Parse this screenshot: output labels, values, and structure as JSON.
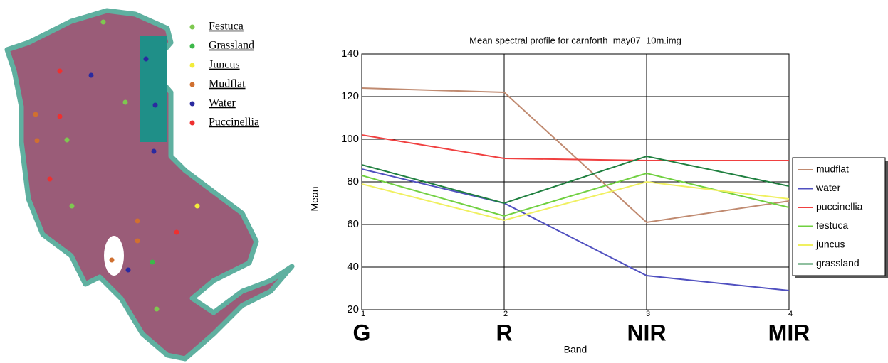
{
  "map": {
    "legend": [
      {
        "label": "Festuca",
        "color": "#7ec850"
      },
      {
        "label": "Grassland",
        "color": "#3cb84a"
      },
      {
        "label": "Juncus",
        "color": "#f2ec3a"
      },
      {
        "label": "Mudflat",
        "color": "#d07030"
      },
      {
        "label": "Water",
        "color": "#2a2aa0"
      },
      {
        "label": "Puccinellia",
        "color": "#ee3030"
      }
    ]
  },
  "chart_data": {
    "type": "line",
    "title": "Mean spectral profile for carnforth_may07_10m.img",
    "x_label": "Band",
    "y_label": "Mean",
    "x": [
      1,
      2,
      3,
      4
    ],
    "band_labels": [
      "G",
      "R",
      "NIR",
      "MIR"
    ],
    "xlim": [
      1,
      4
    ],
    "xticks": [
      1,
      2,
      3,
      4
    ],
    "ylim": [
      20,
      140
    ],
    "yticks": [
      20,
      40,
      60,
      80,
      100,
      120,
      140
    ],
    "grid": true,
    "legend": "right",
    "series": [
      {
        "name": "mudflat",
        "color": "#c08a70",
        "values": [
          124,
          122,
          61,
          71
        ]
      },
      {
        "name": "water",
        "color": "#5050c0",
        "values": [
          86,
          70,
          36,
          29
        ]
      },
      {
        "name": "puccinellia",
        "color": "#f04040",
        "values": [
          102,
          91,
          90,
          90
        ]
      },
      {
        "name": "festuca",
        "color": "#70d040",
        "values": [
          83,
          64,
          84,
          68
        ]
      },
      {
        "name": "juncus",
        "color": "#f0f060",
        "values": [
          79,
          62,
          80,
          72
        ]
      },
      {
        "name": "grassland",
        "color": "#208040",
        "values": [
          88,
          70,
          92,
          78
        ]
      }
    ]
  }
}
